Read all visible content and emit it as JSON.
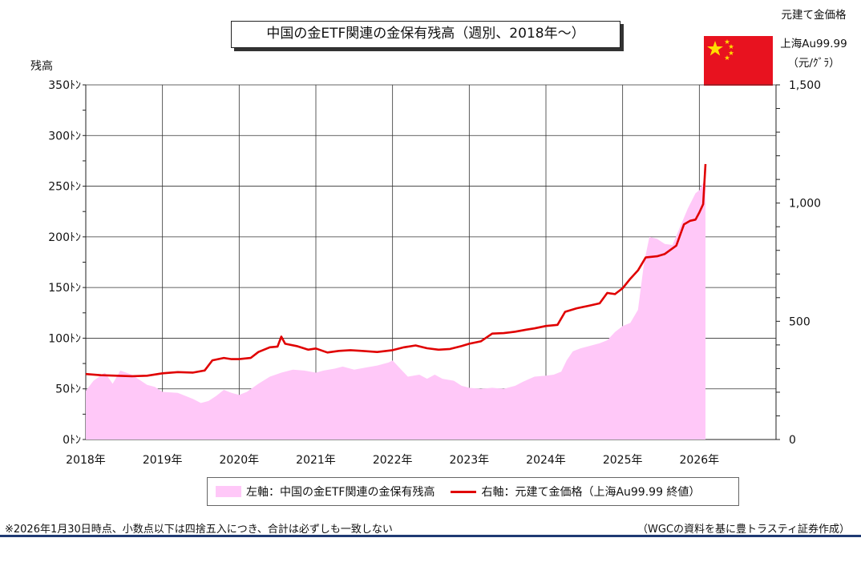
{
  "chart_data": {
    "type": "area+line",
    "title": "中国の金ETF関連の金保有残高（週別、2018年〜）",
    "y_left_label": "残高",
    "y_left_ticks": [
      "350ﾄﾝ",
      "300ﾄﾝ",
      "250ﾄﾝ",
      "200ﾄﾝ",
      "150ﾄﾝ",
      "100ﾄﾝ",
      "50ﾄﾝ",
      "0ﾄﾝ"
    ],
    "y_left_range": [
      0,
      350
    ],
    "y_right_label_lines": [
      "元建て金価格",
      "上海Au99.99",
      "（元/ｸﾞﾗ）"
    ],
    "y_right_ticks": [
      "1,500",
      "1,000",
      "500",
      "0"
    ],
    "y_right_range": [
      0,
      1500
    ],
    "x_ticks": [
      "2018年",
      "2019年",
      "2020年",
      "2021年",
      "2022年",
      "2023年",
      "2024年",
      "2025年",
      "2026年"
    ],
    "x_range": [
      2018,
      2027
    ],
    "grid": true,
    "series": [
      {
        "name": "左軸：中国の金ETF関連の金保有残高",
        "axis": "left",
        "color": "#ffc8f8",
        "points": [
          [
            2018.0,
            48
          ],
          [
            2018.1,
            58
          ],
          [
            2018.25,
            66
          ],
          [
            2018.35,
            55
          ],
          [
            2018.45,
            68
          ],
          [
            2018.6,
            64
          ],
          [
            2018.8,
            54
          ],
          [
            2018.9,
            52
          ],
          [
            2019.0,
            47
          ],
          [
            2019.2,
            46
          ],
          [
            2019.4,
            40
          ],
          [
            2019.5,
            36
          ],
          [
            2019.6,
            38
          ],
          [
            2019.7,
            43
          ],
          [
            2019.8,
            49
          ],
          [
            2019.9,
            46
          ],
          [
            2020.0,
            44
          ],
          [
            2020.1,
            47
          ],
          [
            2020.25,
            55
          ],
          [
            2020.4,
            62
          ],
          [
            2020.55,
            66
          ],
          [
            2020.7,
            69
          ],
          [
            2020.85,
            68
          ],
          [
            2021.0,
            66
          ],
          [
            2021.1,
            68
          ],
          [
            2021.25,
            70
          ],
          [
            2021.35,
            72
          ],
          [
            2021.5,
            69
          ],
          [
            2021.65,
            71
          ],
          [
            2021.8,
            73
          ],
          [
            2021.95,
            76
          ],
          [
            2022.0,
            78
          ],
          [
            2022.1,
            70
          ],
          [
            2022.2,
            62
          ],
          [
            2022.35,
            64
          ],
          [
            2022.45,
            60
          ],
          [
            2022.55,
            64
          ],
          [
            2022.65,
            60
          ],
          [
            2022.8,
            58
          ],
          [
            2022.9,
            53
          ],
          [
            2023.0,
            51
          ],
          [
            2023.15,
            50
          ],
          [
            2023.3,
            51
          ],
          [
            2023.45,
            50
          ],
          [
            2023.5,
            51
          ],
          [
            2023.6,
            53
          ],
          [
            2023.7,
            57
          ],
          [
            2023.85,
            62
          ],
          [
            2024.0,
            63
          ],
          [
            2024.1,
            64
          ],
          [
            2024.2,
            67
          ],
          [
            2024.27,
            78
          ],
          [
            2024.35,
            87
          ],
          [
            2024.45,
            90
          ],
          [
            2024.55,
            92
          ],
          [
            2024.7,
            95
          ],
          [
            2024.8,
            98
          ],
          [
            2024.9,
            106
          ],
          [
            2025.0,
            112
          ],
          [
            2025.1,
            115
          ],
          [
            2025.2,
            128
          ],
          [
            2025.28,
            175
          ],
          [
            2025.35,
            200
          ],
          [
            2025.45,
            198
          ],
          [
            2025.55,
            193
          ],
          [
            2025.65,
            192
          ],
          [
            2025.75,
            210
          ],
          [
            2025.85,
            228
          ],
          [
            2025.95,
            243
          ],
          [
            2026.0,
            246
          ],
          [
            2026.05,
            253
          ],
          [
            2026.08,
            263
          ]
        ]
      },
      {
        "name": "右軸：元建て金価格（上海Au99.99 終値）",
        "axis": "right",
        "color": "#e00000",
        "points": [
          [
            2018.0,
            277
          ],
          [
            2018.2,
            272
          ],
          [
            2018.4,
            270
          ],
          [
            2018.6,
            268
          ],
          [
            2018.8,
            270
          ],
          [
            2019.0,
            280
          ],
          [
            2019.2,
            285
          ],
          [
            2019.4,
            283
          ],
          [
            2019.55,
            292
          ],
          [
            2019.65,
            335
          ],
          [
            2019.8,
            345
          ],
          [
            2019.9,
            340
          ],
          [
            2020.0,
            340
          ],
          [
            2020.15,
            345
          ],
          [
            2020.25,
            370
          ],
          [
            2020.4,
            390
          ],
          [
            2020.5,
            393
          ],
          [
            2020.55,
            435
          ],
          [
            2020.6,
            405
          ],
          [
            2020.75,
            395
          ],
          [
            2020.9,
            380
          ],
          [
            2021.0,
            385
          ],
          [
            2021.15,
            368
          ],
          [
            2021.3,
            375
          ],
          [
            2021.45,
            378
          ],
          [
            2021.6,
            375
          ],
          [
            2021.8,
            370
          ],
          [
            2022.0,
            378
          ],
          [
            2022.15,
            390
          ],
          [
            2022.3,
            398
          ],
          [
            2022.45,
            386
          ],
          [
            2022.6,
            380
          ],
          [
            2022.75,
            383
          ],
          [
            2022.9,
            395
          ],
          [
            2023.0,
            405
          ],
          [
            2023.15,
            415
          ],
          [
            2023.3,
            448
          ],
          [
            2023.45,
            450
          ],
          [
            2023.6,
            456
          ],
          [
            2023.75,
            465
          ],
          [
            2023.85,
            470
          ],
          [
            2024.0,
            480
          ],
          [
            2024.15,
            485
          ],
          [
            2024.25,
            540
          ],
          [
            2024.4,
            555
          ],
          [
            2024.55,
            565
          ],
          [
            2024.7,
            576
          ],
          [
            2024.8,
            620
          ],
          [
            2024.9,
            615
          ],
          [
            2025.0,
            640
          ],
          [
            2025.1,
            680
          ],
          [
            2025.2,
            715
          ],
          [
            2025.3,
            770
          ],
          [
            2025.45,
            775
          ],
          [
            2025.55,
            785
          ],
          [
            2025.7,
            820
          ],
          [
            2025.8,
            910
          ],
          [
            2025.88,
            925
          ],
          [
            2025.95,
            930
          ],
          [
            2026.0,
            960
          ],
          [
            2026.05,
            995
          ],
          [
            2026.08,
            1165
          ]
        ]
      }
    ],
    "legend_items": [
      "左軸：中国の金ETF関連の金保有残高",
      "右軸：元建て金価格（上海Au99.99 終値）"
    ]
  },
  "footnote": "※2026年1月30日時点、小数点以下は四捨五入につき、合計は必ずしも一致しない",
  "source": "（WGCの資料を基に豊トラスティ証券作成）",
  "flag_icon": "china-flag-icon"
}
